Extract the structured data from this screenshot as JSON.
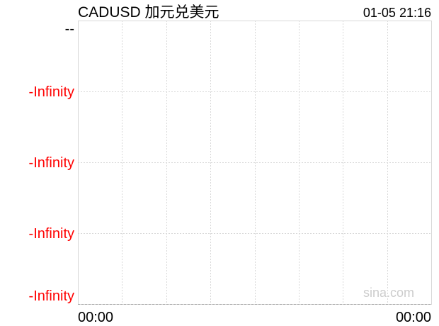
{
  "chart_data": {
    "type": "line",
    "title": "CADUSD 加元兑美元",
    "timestamp": "01-05 21:16",
    "watermark": "sina.com",
    "y_tick_labels": [
      "--",
      "-Infinity",
      "-Infinity",
      "-Infinity",
      "-Infinity"
    ],
    "x_tick_labels": [
      "00:00",
      "00:00"
    ],
    "series": [],
    "grid": true,
    "colors": {
      "axis_label_down": "#ff0000",
      "axis_label": "#000000",
      "grid": "#d8d8d8",
      "watermark": "#cccccc"
    }
  }
}
